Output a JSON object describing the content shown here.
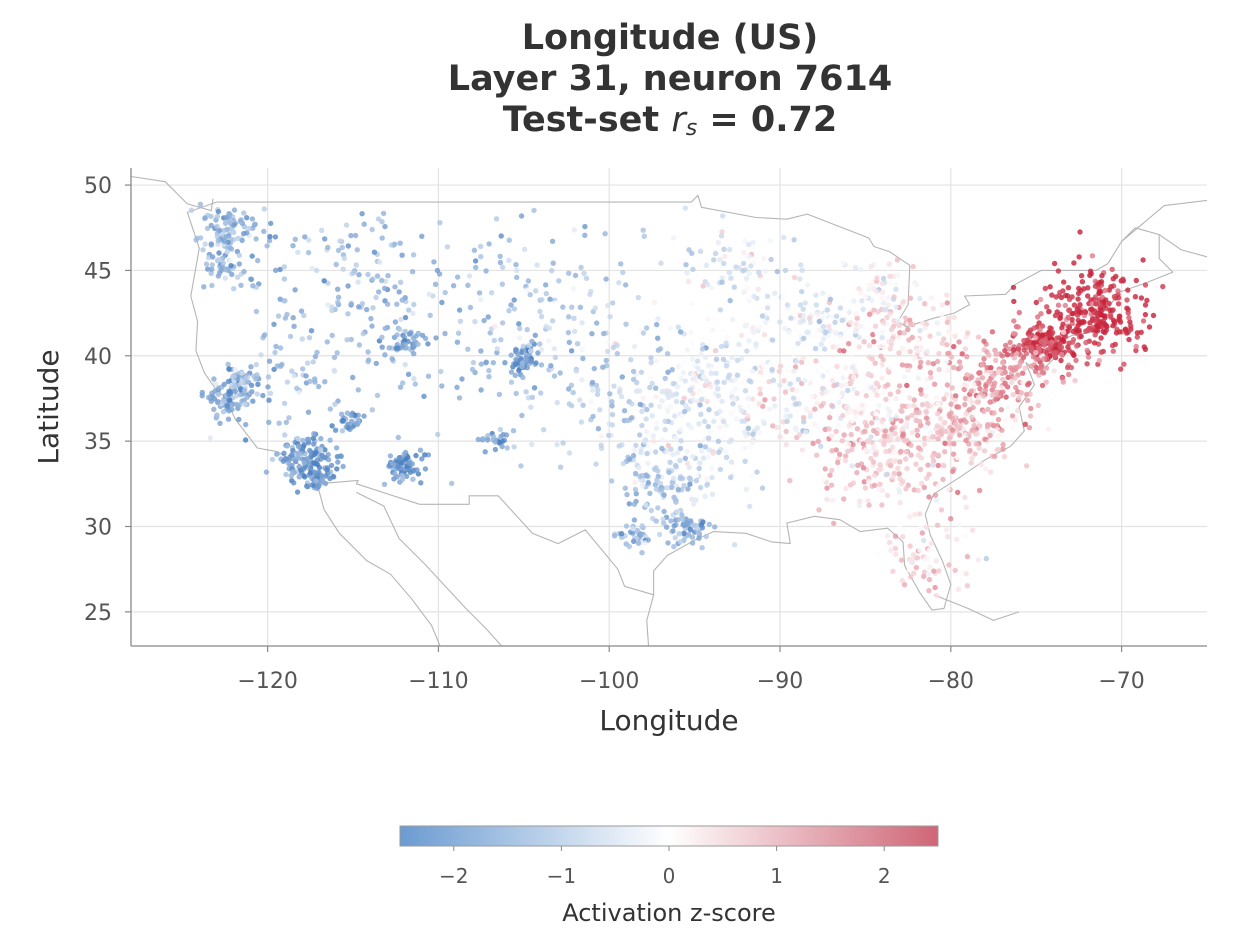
{
  "chart_data": {
    "type": "scatter",
    "title_lines": [
      "Longitude (US)",
      "Layer 31, neuron 7614",
      "Test-set"
    ],
    "title_stat_symbol": "r",
    "title_stat_subscript": "s",
    "title_stat_value": "= 0.72",
    "xlabel": "Longitude",
    "ylabel": "Latitude",
    "xlim": [
      -128,
      -65
    ],
    "ylim": [
      23,
      51
    ],
    "xticks": [
      -120,
      -110,
      -100,
      -90,
      -80,
      -70
    ],
    "yticks": [
      25,
      30,
      35,
      40,
      45,
      50
    ],
    "grid": true,
    "basemap": "US, Canada and Mexico outlines (gray)",
    "point_color_meaning": "Activation z-score",
    "colorbar": {
      "label": "Activation z-score",
      "range": [
        -2.5,
        2.5
      ],
      "ticks": [
        -2,
        -1,
        0,
        1,
        2
      ],
      "low_color": "#4a7fc1",
      "mid_color": "#ffffff",
      "high_color": "#c8233a"
    },
    "clusters": [
      {
        "lon": -71.5,
        "lat": 42.5,
        "z": 2.4,
        "spread": 1.6,
        "n": 260
      },
      {
        "lon": -74.2,
        "lat": 40.7,
        "z": 2.3,
        "spread": 0.7,
        "n": 120
      },
      {
        "lon": -75.5,
        "lat": 40.0,
        "z": 1.6,
        "spread": 1.2,
        "n": 90
      },
      {
        "lon": -77.5,
        "lat": 38.5,
        "z": 1.2,
        "spread": 1.5,
        "n": 110
      },
      {
        "lon": -80.0,
        "lat": 36.0,
        "z": 0.8,
        "spread": 2.0,
        "n": 220
      },
      {
        "lon": -84.0,
        "lat": 34.0,
        "z": 0.6,
        "spread": 2.0,
        "n": 200
      },
      {
        "lon": -81.5,
        "lat": 28.0,
        "z": 0.5,
        "spread": 1.4,
        "n": 70
      },
      {
        "lon": -82.5,
        "lat": 41.0,
        "z": 0.5,
        "spread": 1.8,
        "n": 140
      },
      {
        "lon": -86.5,
        "lat": 37.5,
        "z": 0.2,
        "spread": 2.0,
        "n": 150
      },
      {
        "lon": -88.0,
        "lat": 42.0,
        "z": -0.4,
        "spread": 1.2,
        "n": 80
      },
      {
        "lon": -93.0,
        "lat": 38.5,
        "z": -0.3,
        "spread": 2.5,
        "n": 190
      },
      {
        "lon": -94.5,
        "lat": 35.0,
        "z": -0.5,
        "spread": 2.5,
        "n": 140
      },
      {
        "lon": -97.0,
        "lat": 32.5,
        "z": -1.2,
        "spread": 1.3,
        "n": 90
      },
      {
        "lon": -95.5,
        "lat": 29.8,
        "z": -1.5,
        "spread": 0.7,
        "n": 60
      },
      {
        "lon": -98.5,
        "lat": 29.5,
        "z": -1.4,
        "spread": 0.5,
        "n": 35
      },
      {
        "lon": -92.0,
        "lat": 45.0,
        "z": -0.4,
        "spread": 2.0,
        "n": 90
      },
      {
        "lon": -84.0,
        "lat": 43.5,
        "z": 0.0,
        "spread": 1.2,
        "n": 60
      },
      {
        "lon": -105.0,
        "lat": 39.8,
        "z": -2.0,
        "spread": 0.5,
        "n": 55
      },
      {
        "lon": -112.0,
        "lat": 33.5,
        "z": -2.1,
        "spread": 0.6,
        "n": 75
      },
      {
        "lon": -111.9,
        "lat": 40.7,
        "z": -1.8,
        "spread": 0.7,
        "n": 45
      },
      {
        "lon": -117.8,
        "lat": 34.0,
        "z": -1.9,
        "spread": 0.9,
        "n": 130
      },
      {
        "lon": -117.1,
        "lat": 32.8,
        "z": -2.0,
        "spread": 0.4,
        "n": 40
      },
      {
        "lon": -122.2,
        "lat": 37.6,
        "z": -1.6,
        "spread": 0.7,
        "n": 90
      },
      {
        "lon": -121.5,
        "lat": 38.6,
        "z": -1.5,
        "spread": 0.6,
        "n": 40
      },
      {
        "lon": -122.4,
        "lat": 47.4,
        "z": -1.4,
        "spread": 0.9,
        "n": 80
      },
      {
        "lon": -122.7,
        "lat": 45.5,
        "z": -1.3,
        "spread": 0.8,
        "n": 50
      },
      {
        "lon": -115.2,
        "lat": 36.2,
        "z": -2.0,
        "spread": 0.4,
        "n": 30
      },
      {
        "lon": -106.6,
        "lat": 35.1,
        "z": -1.7,
        "spread": 0.6,
        "n": 25
      },
      {
        "lon": -110.5,
        "lat": 41.5,
        "z": -1.4,
        "spread": 4.5,
        "n": 140
      },
      {
        "lon": -103.0,
        "lat": 43.5,
        "z": -1.1,
        "spread": 3.5,
        "n": 110
      },
      {
        "lon": -99.5,
        "lat": 38.0,
        "z": -1.0,
        "spread": 2.5,
        "n": 110
      },
      {
        "lon": -116.5,
        "lat": 44.5,
        "z": -1.5,
        "spread": 3.0,
        "n": 110
      },
      {
        "lon": -119.0,
        "lat": 38.5,
        "z": -1.4,
        "spread": 1.8,
        "n": 60
      }
    ]
  }
}
